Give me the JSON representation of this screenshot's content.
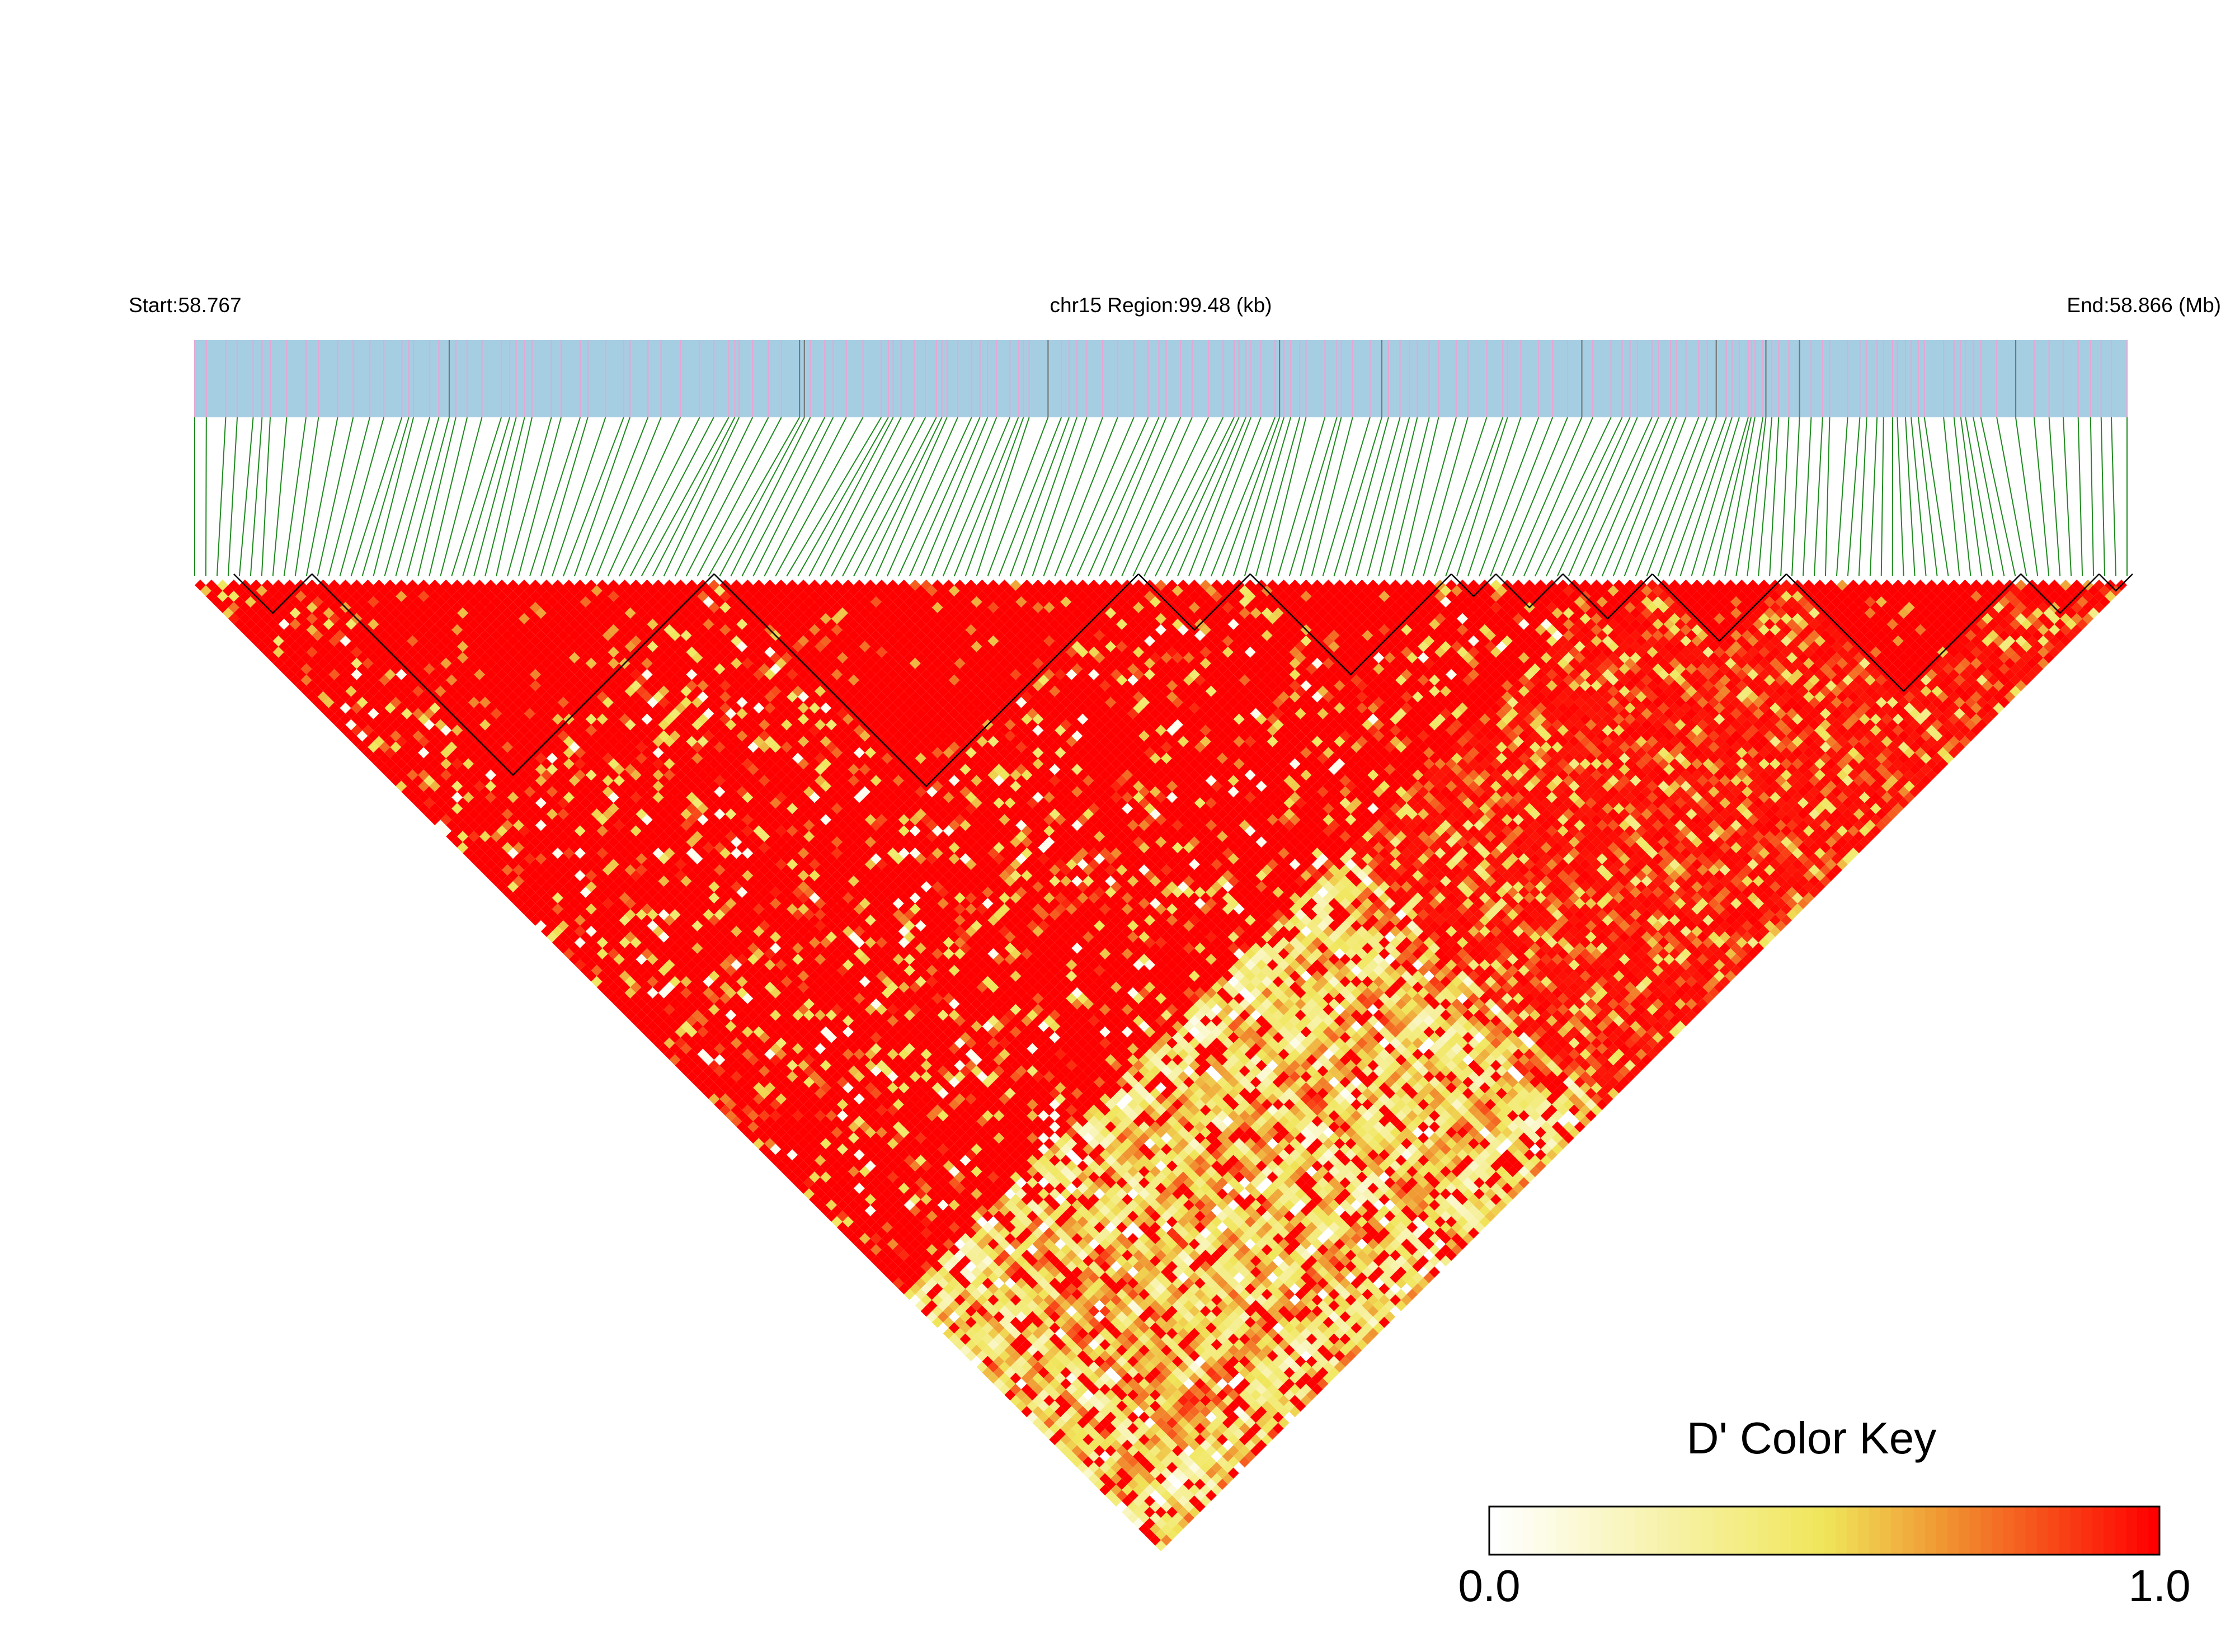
{
  "chart_data": {
    "type": "heatmap",
    "title": "",
    "header": {
      "start_label": "Start:58.767",
      "region_label": "chr15 Region:99.48 (kb)",
      "end_label": "End:58.866 (Mb)"
    },
    "region": {
      "chromosome": "chr15",
      "start_mb": 58.767,
      "end_mb": 58.866,
      "length_kb": 99.48
    },
    "snp_count": 174,
    "colors": {
      "track_background": "#a6cee3",
      "snp_tick": "#e8a6d4",
      "connector": "#1f8a1f",
      "block_outline": "#000000",
      "high_ld": "#ff0000",
      "mid_ld": "#e8e84a",
      "low_ld": "#ffffff"
    },
    "haplotype_blocks": [
      [
        4,
        10
      ],
      [
        11,
        46
      ],
      [
        47,
        84
      ],
      [
        85,
        94
      ],
      [
        95,
        112
      ],
      [
        113,
        116
      ],
      [
        117,
        122
      ],
      [
        123,
        130
      ],
      [
        131,
        142
      ],
      [
        143,
        163
      ],
      [
        164,
        170
      ],
      [
        171,
        173
      ]
    ],
    "legend": {
      "title": "D' Color Key",
      "min_label": "0.0",
      "max_label": "1.0",
      "scale": [
        "#ffffff",
        "#fcf7dc",
        "#f9f0b8",
        "#f6ea94",
        "#f0e65a",
        "#ecb43a",
        "#f08c2a",
        "#f5641e",
        "#fa3c12",
        "#ff0000"
      ]
    }
  }
}
